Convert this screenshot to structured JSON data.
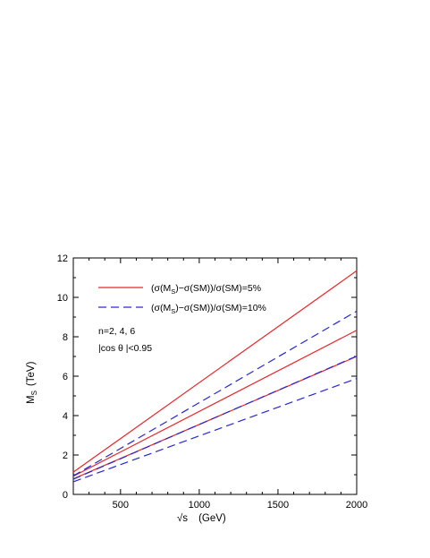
{
  "chart_data": {
    "type": "line",
    "xlabel_main": "√s",
    "xlabel_unit": "(GeV)",
    "ylabel_main": "M",
    "ylabel_sub": "S",
    "ylabel_unit": "(TeV)",
    "xlim": [
      200,
      2000
    ],
    "ylim": [
      0,
      12
    ],
    "xticks": [
      500,
      1000,
      1500,
      2000
    ],
    "yticks": [
      0,
      2,
      4,
      6,
      8,
      10,
      12
    ],
    "legend": [
      {
        "style": "solid",
        "color": "#e8262a",
        "text_main": "(σ(M",
        "text_sub": "S",
        "text_rest": ")−σ(SM))/σ(SM)=5%"
      },
      {
        "style": "dashed",
        "color": "#2727d6",
        "text_main": "(σ(M",
        "text_sub": "S",
        "text_rest": ")−σ(SM))/σ(SM)=10%"
      }
    ],
    "annotations": [
      "n=2, 4, 6",
      "|cos θ |<0.95"
    ],
    "series": [
      {
        "style": "solid",
        "color": "#e8262a",
        "x": [
          200,
          2000
        ],
        "y": [
          1.13,
          11.35
        ]
      },
      {
        "style": "solid",
        "color": "#e8262a",
        "x": [
          200,
          2000
        ],
        "y": [
          0.92,
          8.33
        ]
      },
      {
        "style": "solid",
        "color": "#e8262a",
        "x": [
          200,
          2000
        ],
        "y": [
          0.79,
          7.0
        ]
      },
      {
        "style": "dashed",
        "color": "#2727d6",
        "x": [
          200,
          2000
        ],
        "y": [
          0.94,
          9.3
        ]
      },
      {
        "style": "dashed",
        "color": "#2727d6",
        "x": [
          200,
          2000
        ],
        "y": [
          0.77,
          7.02
        ]
      },
      {
        "style": "dashed",
        "color": "#2727d6",
        "x": [
          200,
          2000
        ],
        "y": [
          0.64,
          5.88
        ]
      }
    ]
  }
}
